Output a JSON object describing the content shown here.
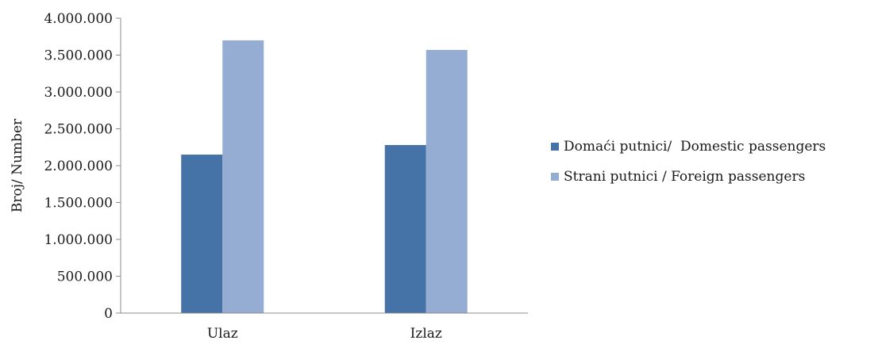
{
  "chart_data": {
    "type": "bar",
    "categories": [
      "Ulaz",
      "Izlaz"
    ],
    "series": [
      {
        "name": "Domaći putnici/  Domestic passengers",
        "values": [
          2150000,
          2280000
        ],
        "color": "#4572a7"
      },
      {
        "name": "Strani putnici / Foreign passengers",
        "values": [
          3700000,
          3570000
        ],
        "color": "#95acd3"
      }
    ],
    "ylabel": "Broj/ Number",
    "ylim": [
      0,
      4000000
    ],
    "yticks": [
      "0",
      "500.000",
      "1.000.000",
      "1.500.000",
      "2.000.000",
      "2.500.000",
      "3.000.000",
      "3.500.000",
      "4.000.000"
    ],
    "grid": false,
    "legend_position": "right"
  }
}
